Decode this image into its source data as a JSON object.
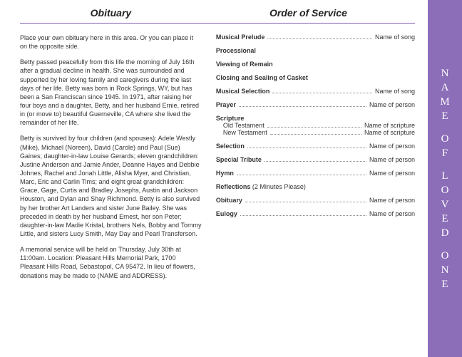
{
  "headers": {
    "left": "Obituary",
    "right": "Order of Service"
  },
  "obituary": {
    "p1": "Place your own obituary here in this area. Or you can place it on the opposite side.",
    "p2": "Betty passed peacefully from this life the morning of July 16th after a gradual decline in health.  She was surrounded and supported by her loving family and caregivers during the last days of her life.  Betty was born in Rock Springs, WY, but has been a San Franciscan since 1945.  In 1971, after raising her four boys and a daughter, Betty, and her husband Ernie, retired in (or move to) beautiful Guerneville, CA where she lived the remainder of her life.",
    "p3": "Betty is survived by four children (and spouses): Adele Westly (Mike), Michael (Noreen), David (Carole) and Paul (Sue) Gaines;  daughter-in-law Louise Gerards;  eleven grandchildren: Justine Anderson and Jamie Ander, Deanne Hayes and Debbie Johnes, Rachel and Jonah Little, Alisha Myer, and Christian, Marc, Eric and Carlin Tims;  and eight great grandchildren: Grace, Gage, Curtis and Bradley Josephs, Austin and Jackson Houston, and Dylan and Shay Richmond.  Betty is also survived by her brother Art Landers and sister June Bailey.  She was preceded in death by her husband Ernest, her son Peter; daughter-in-law Madie Kristal, brothers Nels, Bobby and Tommy Little, and sisters Lucy Smith, May Day and Pearl Transferson.",
    "p4": "A memorial service will be held on Thursday, July 30th at 11:00am.  Location:  Pleasant Hills Memorial Park, 1700 Pleasant Hills Road, Sebastopol, CA 95472.  In lieu of flowers, donations may be made to (NAME and ADDRESS)."
  },
  "service": {
    "musical_prelude": {
      "label": "Musical Prelude",
      "value": "Name of song"
    },
    "processional": {
      "label": "Processional"
    },
    "viewing": {
      "label": "Viewing of Remain"
    },
    "closing": {
      "label": "Closing and Sealing of Casket"
    },
    "musical_selection": {
      "label": "Musical Selection",
      "value": "Name of song"
    },
    "prayer": {
      "label": "Prayer",
      "value": "Name of person"
    },
    "scripture": {
      "label": "Scripture",
      "old": {
        "label": "Old Testament",
        "value": "Name of scripture"
      },
      "new": {
        "label": "New Testament",
        "value": "Name of scripture"
      }
    },
    "selection": {
      "label": "Selection",
      "value": "Name of person"
    },
    "special_tribute": {
      "label": "Special Tribute",
      "value": "Name of person"
    },
    "hymn": {
      "label": "Hymn",
      "value": "Name of person"
    },
    "reflections": {
      "label": "Reflections",
      "note": " (2 Minutes Please)"
    },
    "obituary_line": {
      "label": "Obituary",
      "value": "Name of person"
    },
    "eulogy": {
      "label": "Eulogy",
      "value": "Name of person"
    }
  },
  "sidebar": {
    "words": [
      "NAME",
      "OF",
      "LOVED",
      "ONE"
    ]
  },
  "colors": {
    "accent": "#8b6db8",
    "rule": "#7a5db0",
    "text": "#333333"
  }
}
